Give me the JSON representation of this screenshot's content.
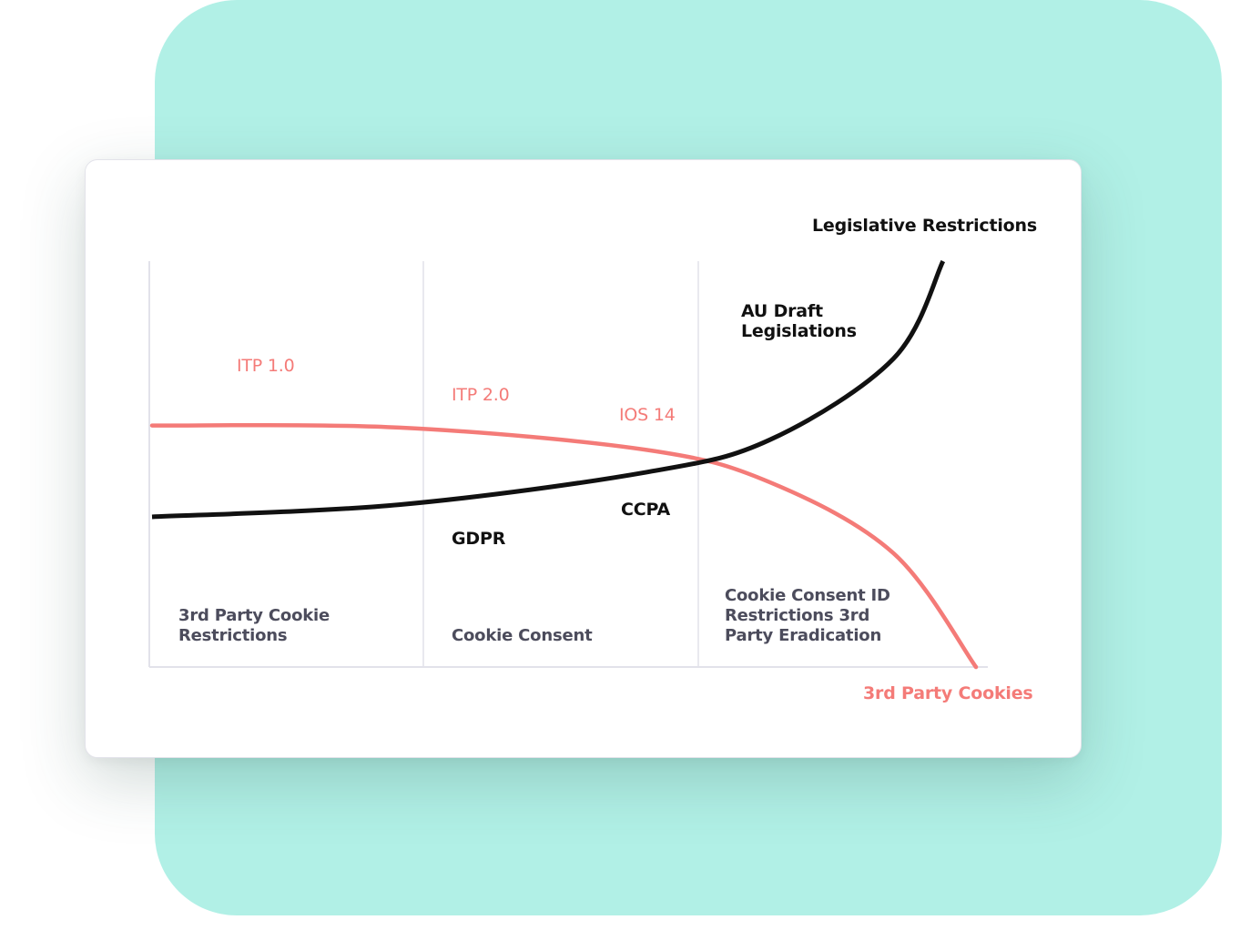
{
  "colors": {
    "backdrop": "#b1f0e6",
    "cookies_line": "#f47b78",
    "legislation_line": "#111111",
    "grid": "#e2e2ea",
    "phase_text": "#4c4c5c"
  },
  "chart_data": {
    "type": "line",
    "grid": true,
    "legend": "series labels at line ends",
    "phases": [
      "3rd Party Cookie Restrictions",
      "Cookie Consent",
      "Cookie Consent ID Restrictions 3rd Party Eradication"
    ],
    "series": [
      {
        "name": "Legislative Restrictions",
        "color": "#111111",
        "x": [
          0,
          0.3,
          0.6,
          0.75,
          0.9,
          0.96
        ],
        "values": [
          0.37,
          0.4,
          0.48,
          0.56,
          0.76,
          1.0
        ],
        "annotations": [
          "GDPR",
          "CCPA",
          "AU Draft Legislations"
        ]
      },
      {
        "name": "3rd Party Cookies",
        "color": "#f47b78",
        "x": [
          0,
          0.3,
          0.6,
          0.75,
          0.9,
          1.0
        ],
        "values": [
          0.595,
          0.59,
          0.535,
          0.455,
          0.28,
          0.0
        ],
        "annotations": [
          "ITP 1.0",
          "ITP 2.0",
          "IOS 14"
        ]
      }
    ],
    "labels": {
      "legislative": "Legislative Restrictions",
      "cookies": "3rd Party Cookies",
      "itp1": "ITP 1.0",
      "itp2": "ITP 2.0",
      "ios14": "IOS 14",
      "gdpr": "GDPR",
      "ccpa": "CCPA",
      "au_line1": "AU Draft",
      "au_line2": "Legislations",
      "phase1_line1": "3rd Party Cookie",
      "phase1_line2": "Restrictions",
      "phase2_line1": "Cookie Consent",
      "phase3_line1": "Cookie Consent ID",
      "phase3_line2": "Restrictions 3rd",
      "phase3_line3": "Party Eradication"
    }
  }
}
